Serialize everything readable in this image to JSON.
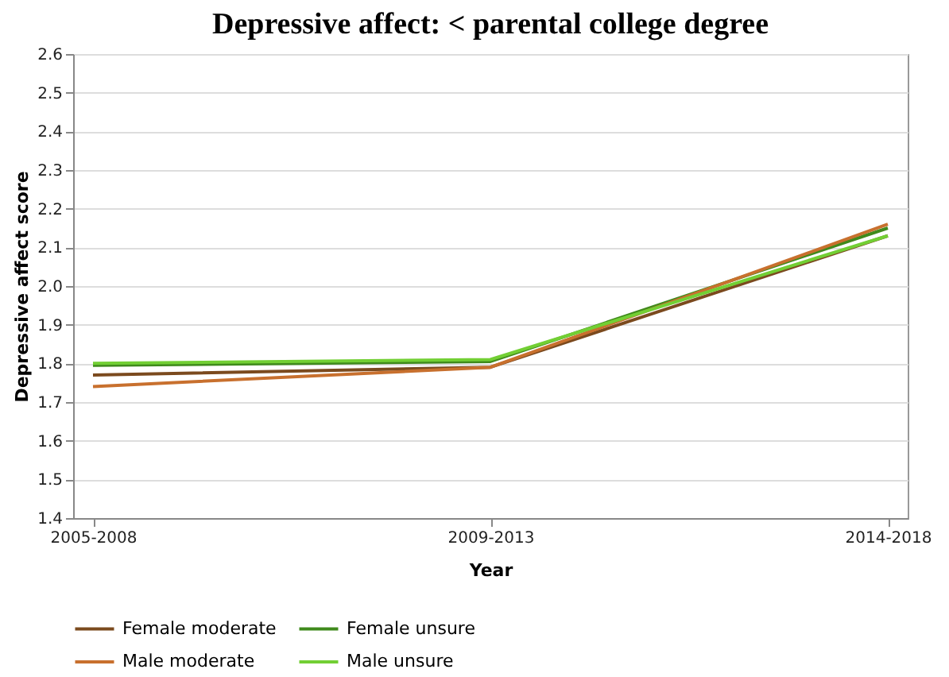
{
  "chart_data": {
    "type": "line",
    "title": "Depressive affect: < parental college degree",
    "xlabel": "Year",
    "ylabel": "Depressive affect score",
    "categories": [
      "2005-2008",
      "2009-2013",
      "2014-2018"
    ],
    "series": [
      {
        "name": "Female moderate",
        "color": "#7b4a1e",
        "values": [
          1.77,
          1.79,
          2.13
        ]
      },
      {
        "name": "Female unsure",
        "color": "#3f8a1c",
        "values": [
          1.795,
          1.805,
          2.15
        ]
      },
      {
        "name": "Male moderate",
        "color": "#c8702e",
        "values": [
          1.74,
          1.79,
          2.16
        ]
      },
      {
        "name": "Male unsure",
        "color": "#72cf34",
        "values": [
          1.8,
          1.81,
          2.13
        ]
      }
    ],
    "ylim": [
      1.4,
      2.6
    ],
    "yticks": [
      1.4,
      1.5,
      1.6,
      1.7,
      1.8,
      1.9,
      {
        "value": 2,
        "label": "2.0"
      },
      2.1,
      2.2,
      2.3,
      2.4,
      2.5,
      2.6
    ],
    "grid": "y",
    "legend": "bottom",
    "marker": "none",
    "line_style": "solid"
  }
}
